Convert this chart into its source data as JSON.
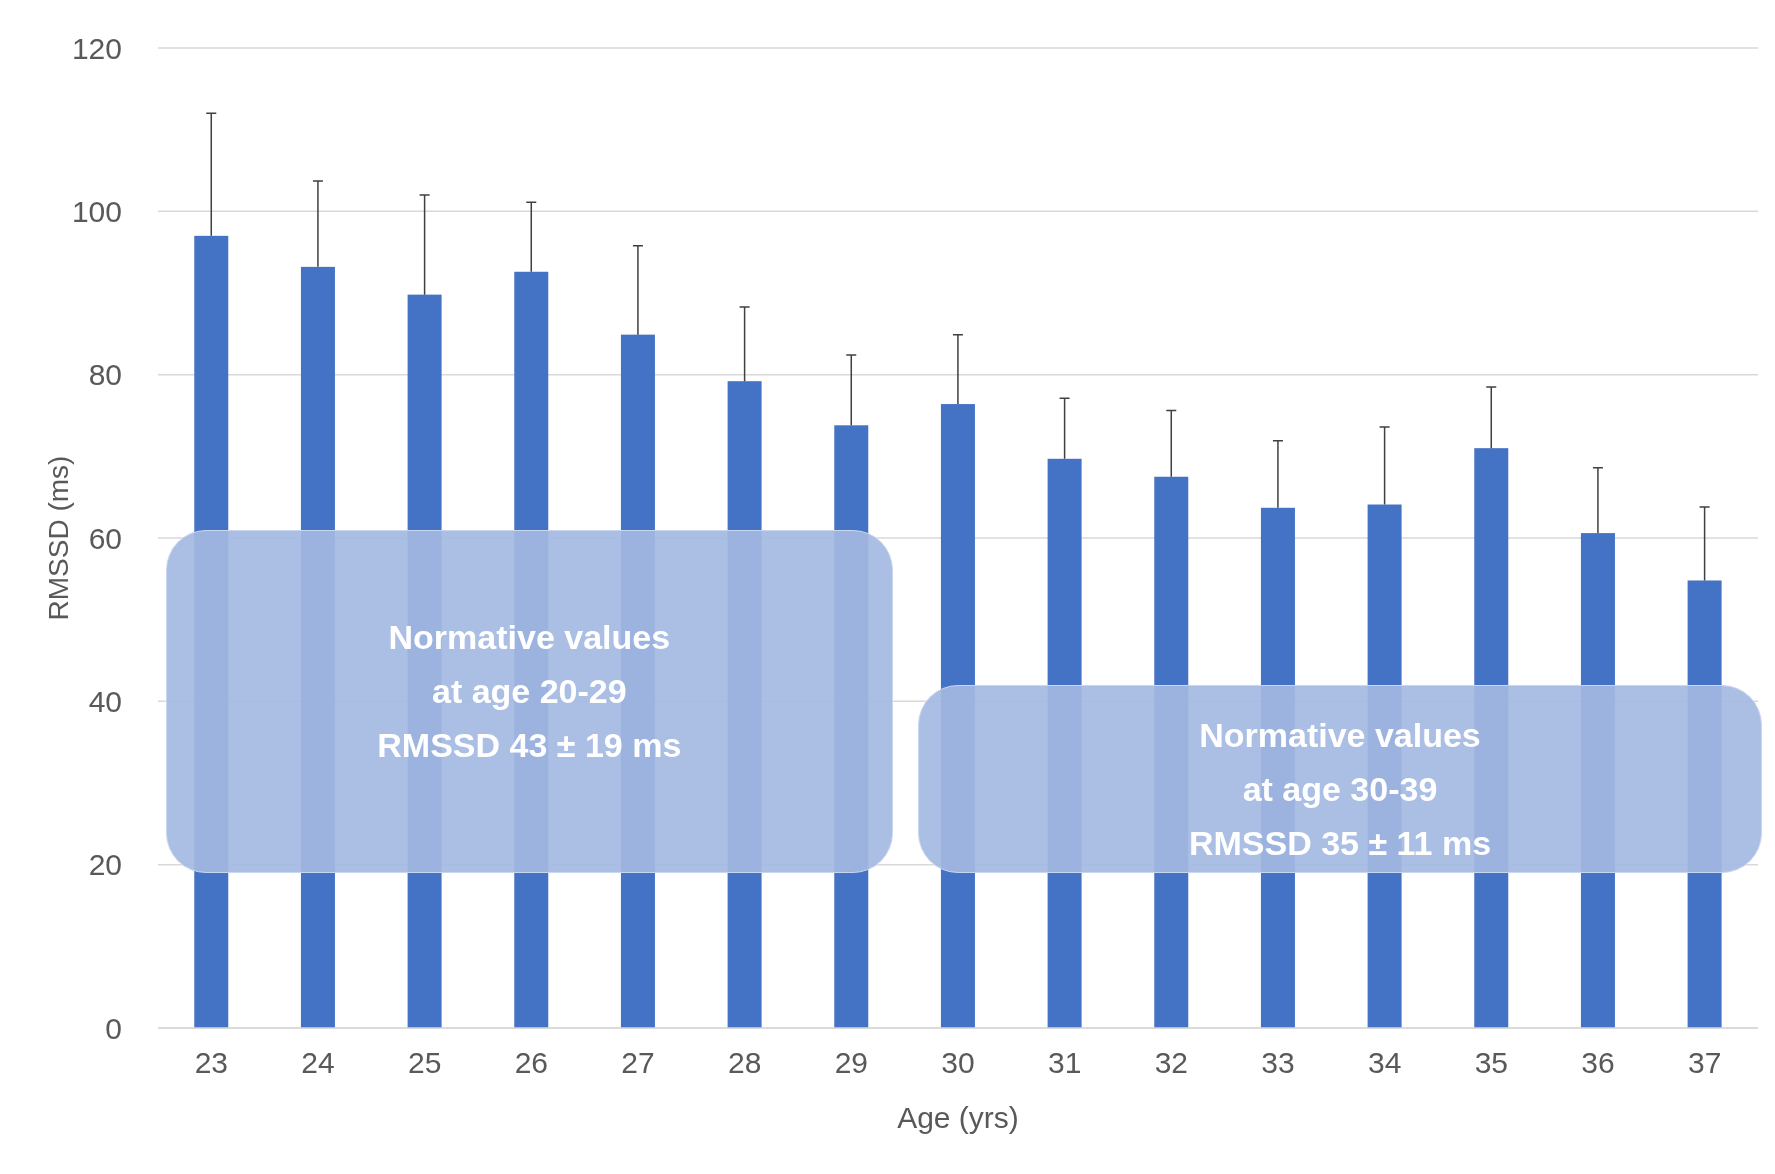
{
  "chart_data": {
    "type": "bar",
    "xlabel": "Age (yrs)",
    "ylabel": "RMSSD (ms)",
    "categories": [
      "23",
      "24",
      "25",
      "26",
      "27",
      "28",
      "29",
      "30",
      "31",
      "32",
      "33",
      "34",
      "35",
      "36",
      "37"
    ],
    "values": [
      97,
      93.2,
      89.8,
      92.6,
      84.9,
      79.2,
      73.8,
      76.4,
      69.7,
      67.5,
      63.7,
      64.1,
      71,
      60.6,
      54.8
    ],
    "errors": [
      [
        97,
        112
      ],
      [
        93.2,
        103.7
      ],
      [
        89.8,
        102
      ],
      [
        92.6,
        101.1
      ],
      [
        84.9,
        95.8
      ],
      [
        79.2,
        88.3
      ],
      [
        73.8,
        82.4
      ],
      [
        76.4,
        84.9
      ],
      [
        69.7,
        77.1
      ],
      [
        67.5,
        75.6
      ],
      [
        63.7,
        71.9
      ],
      [
        64.1,
        73.6
      ],
      [
        71,
        78.5
      ],
      [
        60.6,
        68.6
      ],
      [
        54.8,
        63.8
      ]
    ],
    "color": "#4472c4",
    "ylim": [
      0,
      120
    ],
    "yticks": [
      0,
      20,
      40,
      60,
      80,
      100,
      120
    ],
    "grid": "y",
    "legend": false,
    "annotations": [
      "Normative values\nat age 20-29\nRMSSD 43 ± 19 ms",
      "Normative values\nat age 30-39\nRMSSD 35 ± 11 ms"
    ]
  }
}
